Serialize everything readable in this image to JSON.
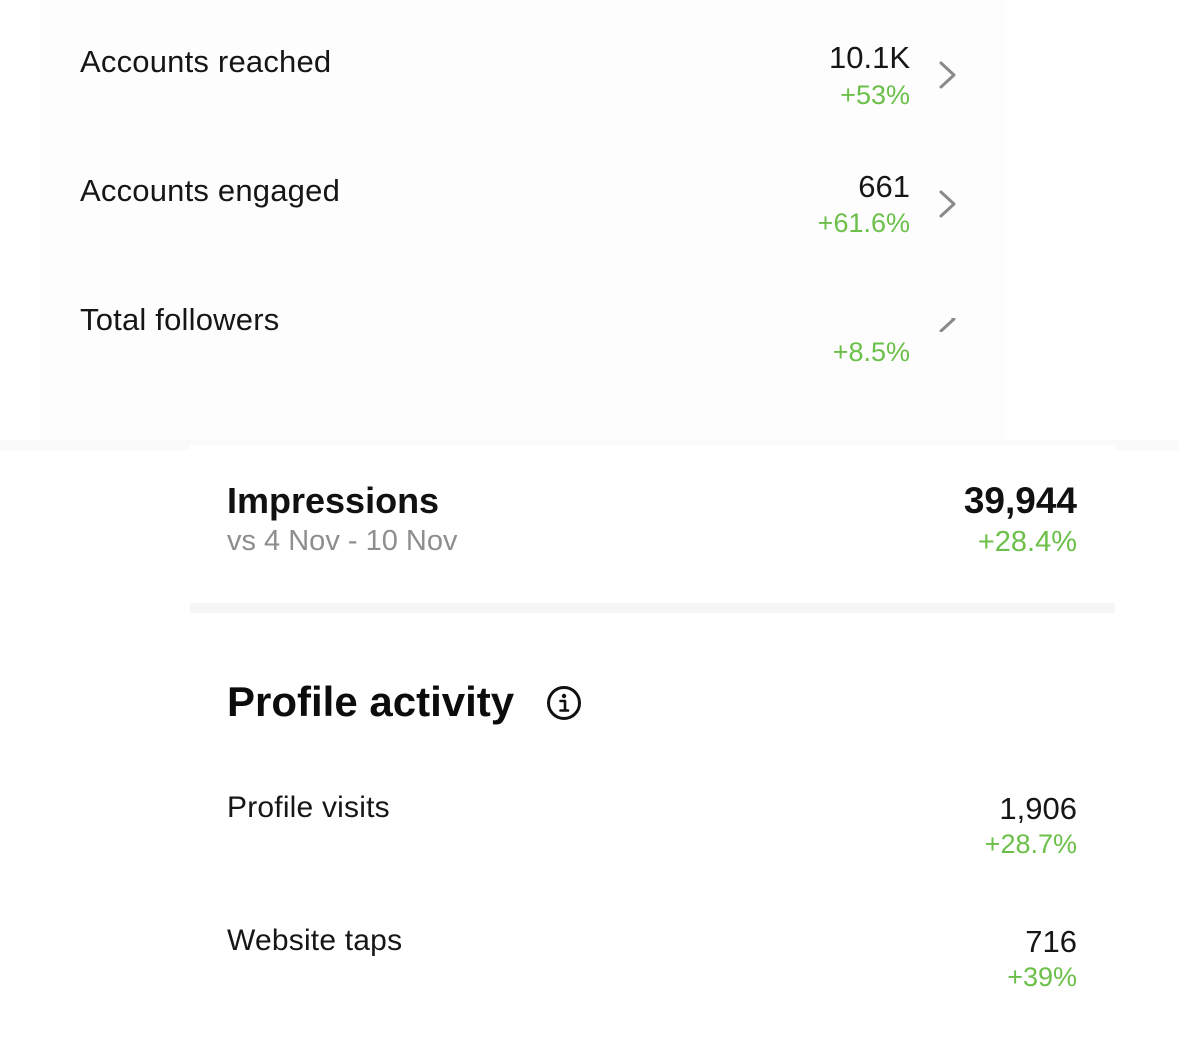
{
  "top_metrics": [
    {
      "label": "Accounts reached",
      "value": "10.1K",
      "change": "+53%",
      "icon": "chevron-right-icon"
    },
    {
      "label": "Accounts engaged",
      "value": "661",
      "change": "+61.6%",
      "icon": "chevron-right-icon"
    },
    {
      "label": "Total followers",
      "value": "",
      "change": "+8.5%",
      "icon": "chevron-right-icon"
    }
  ],
  "impressions": {
    "title": "Impressions",
    "comparison": "vs 4 Nov - 10 Nov",
    "value": "39,944",
    "change": "+28.4%"
  },
  "profile_activity": {
    "title": "Profile activity",
    "icon": "info-icon",
    "rows": [
      {
        "label": "Profile visits",
        "value": "1,906",
        "change": "+28.7%"
      },
      {
        "label": "Website taps",
        "value": "716",
        "change": "+39%"
      }
    ]
  },
  "colors": {
    "positive": "#6cc04a",
    "text": "#161616",
    "secondary": "#8e8e8e",
    "chevron": "#8a8a8a"
  }
}
